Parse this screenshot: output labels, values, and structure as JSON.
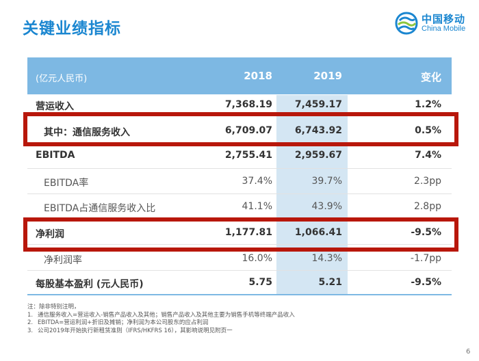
{
  "title": "关键业绩指标",
  "logo": {
    "name_cn": "中国移动",
    "name_en": "China Mobile",
    "brand_color": "#1a86d0"
  },
  "table": {
    "header": {
      "unit": "(亿元人民币)",
      "col_2018": "2018",
      "col_2019": "2019",
      "col_change": "变化"
    },
    "rows": [
      {
        "label": "营运收入",
        "v2018": "7,368.19",
        "v2019": "7,459.17",
        "change": "1.2%"
      },
      {
        "label": "其中：通信服务收入",
        "v2018": "6,709.07",
        "v2019": "6,743.92",
        "change": "0.5%"
      },
      {
        "label": "EBITDA",
        "v2018": "2,755.41",
        "v2019": "2,959.67",
        "change": "7.4%"
      },
      {
        "label": "EBITDA率",
        "v2018": "37.4%",
        "v2019": "39.7%",
        "change": "2.3pp"
      },
      {
        "label": "EBITDA占通信服务收入比",
        "v2018": "41.1%",
        "v2019": "43.9%",
        "change": "2.8pp"
      },
      {
        "label": "净利润",
        "v2018": "1,177.81",
        "v2019": "1,066.41",
        "change": "-9.5%"
      },
      {
        "label": "净利润率",
        "v2018": "16.0%",
        "v2019": "14.3%",
        "change": "-1.7pp"
      },
      {
        "label": "每股基本盈利 (元人民币)",
        "v2018": "5.75",
        "v2019": "5.21",
        "change": "-9.5%"
      }
    ]
  },
  "highlight_color": "#b8170b",
  "notes": {
    "intro": "注：除非特别注明，",
    "items": [
      {
        "num": "1.",
        "text": "通信服务收入=营运收入-销售产品收入及其他；销售产品收入及其他主要为销售手机等终端产品收入"
      },
      {
        "num": "2.",
        "text": "EBITDA=营运利润+折旧及摊销；净利润为本公司股东的应占利润"
      },
      {
        "num": "3.",
        "text": "公司2019年开始执行新租赁准则（IFRS/HKFRS 16），其影响说明见附页一"
      }
    ]
  },
  "page_number": "6"
}
